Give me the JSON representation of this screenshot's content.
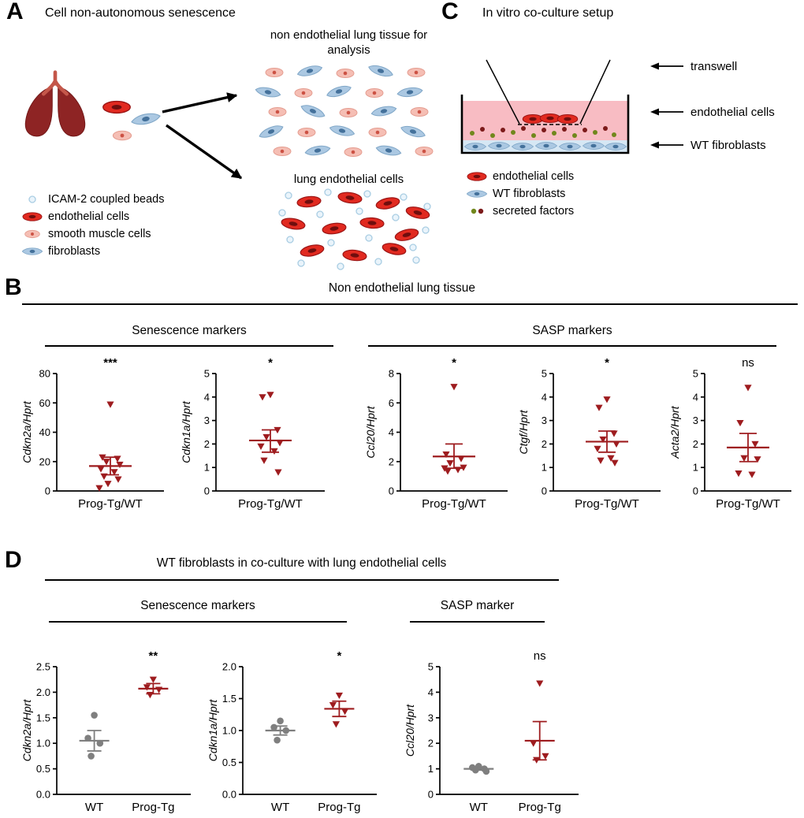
{
  "colors": {
    "dark_red": "#9E1C1F",
    "gray": "#7F7F7F"
  },
  "panelA": {
    "label": "A",
    "title": "Cell non-autonomous senescence",
    "tissue_caption": "non endothelial lung tissue for analysis",
    "endothelial_caption": "lung endothelial cells",
    "legend": [
      {
        "icon": "bead-icon",
        "label": "ICAM-2 coupled beads"
      },
      {
        "icon": "endothelial-cell-icon",
        "label": "endothelial cells"
      },
      {
        "icon": "smooth-muscle-cell-icon",
        "label": "smooth muscle cells"
      },
      {
        "icon": "fibroblast-icon",
        "label": "fibroblasts"
      }
    ]
  },
  "panelC": {
    "label": "C",
    "title": "In vitro co-culture setup",
    "callouts": [
      {
        "label": "transwell"
      },
      {
        "label": "endothelial cells"
      },
      {
        "label": "WT fibroblasts"
      }
    ],
    "legend": [
      {
        "icon": "endothelial-cell-icon",
        "label": "endothelial cells"
      },
      {
        "icon": "fibroblast-icon",
        "label": "WT fibroblasts"
      },
      {
        "icon": "secreted-factors-icon",
        "label": "secreted factors"
      }
    ]
  },
  "panelB": {
    "label": "B",
    "title": "Non endothelial lung tissue",
    "subsection_left": "Senescence markers",
    "subsection_right": "SASP markers"
  },
  "panelD": {
    "label": "D",
    "title": "WT fibroblasts in co-culture with lung endothelial cells",
    "subsection_left": "Senescence markers",
    "subsection_right": "SASP marker"
  },
  "chart_data": [
    {
      "id": "b-cdkn2a",
      "panel": "B",
      "type": "scatter",
      "ylabel": "Cdkn2a/Hprt",
      "ylim": [
        0,
        80
      ],
      "yticks": [
        "0",
        "20",
        "40",
        "60",
        "80"
      ],
      "significance": "***",
      "groups": [
        {
          "label": "Prog-Tg/WT",
          "marker": "triangle-down",
          "color": "#9E1C1F",
          "values": [
            59,
            23,
            22,
            20,
            18,
            15,
            13,
            10,
            8,
            5,
            2
          ],
          "mean": 17,
          "err_low": 11,
          "err_high": 23
        }
      ]
    },
    {
      "id": "b-cdkn1a",
      "panel": "B",
      "type": "scatter",
      "ylabel": "Cdkn1a/Hprt",
      "ylim": [
        0,
        5
      ],
      "yticks": [
        "0",
        "1",
        "2",
        "3",
        "4",
        "5"
      ],
      "significance": "*",
      "groups": [
        {
          "label": "Prog-Tg/WT",
          "marker": "triangle-down",
          "color": "#9E1C1F",
          "values": [
            4.1,
            4.0,
            2.6,
            2.3,
            2.05,
            1.9,
            1.7,
            1.3,
            0.8
          ],
          "mean": 2.15,
          "err_low": 1.65,
          "err_high": 2.6
        }
      ]
    },
    {
      "id": "b-ccl20",
      "panel": "B",
      "type": "scatter",
      "ylabel": "Ccl20/Hprt",
      "ylim": [
        0,
        8
      ],
      "yticks": [
        "0",
        "2",
        "4",
        "6",
        "8"
      ],
      "significance": "*",
      "groups": [
        {
          "label": "Prog-Tg/WT",
          "marker": "triangle-down",
          "color": "#9E1C1F",
          "values": [
            7.1,
            2.5,
            2.2,
            1.9,
            1.6,
            1.55,
            1.45,
            1.35
          ],
          "mean": 2.35,
          "err_low": 1.55,
          "err_high": 3.2
        }
      ]
    },
    {
      "id": "b-ctgf",
      "panel": "B",
      "type": "scatter",
      "ylabel": "Ctgf/Hprt",
      "ylim": [
        0,
        5
      ],
      "yticks": [
        "0",
        "1",
        "2",
        "3",
        "4",
        "5"
      ],
      "significance": "*",
      "groups": [
        {
          "label": "Prog-Tg/WT",
          "marker": "triangle-down",
          "color": "#9E1C1F",
          "values": [
            3.9,
            3.55,
            2.45,
            2.2,
            2.0,
            1.8,
            1.4,
            1.3,
            1.2
          ],
          "mean": 2.1,
          "err_low": 1.65,
          "err_high": 2.55
        }
      ]
    },
    {
      "id": "b-acta2",
      "panel": "B",
      "type": "scatter",
      "ylabel": "Acta2/Hprt",
      "ylim": [
        0,
        5
      ],
      "yticks": [
        "0",
        "1",
        "2",
        "3",
        "4",
        "5"
      ],
      "significance": "ns",
      "groups": [
        {
          "label": "Prog-Tg/WT",
          "marker": "triangle-down",
          "color": "#9E1C1F",
          "values": [
            4.4,
            2.9,
            2.0,
            1.4,
            1.35,
            0.75,
            0.7
          ],
          "mean": 1.85,
          "err_low": 1.25,
          "err_high": 2.45
        }
      ]
    },
    {
      "id": "d-cdkn2a",
      "panel": "D",
      "type": "scatter",
      "ylabel": "Cdkn2a/Hprt",
      "ylim": [
        0,
        2.5
      ],
      "yticks": [
        "0.0",
        "0.5",
        "1.0",
        "1.5",
        "2.0",
        "2.5"
      ],
      "significance": "**",
      "sig_group": 1,
      "groups": [
        {
          "label": "WT",
          "marker": "circle",
          "color": "#7F7F7F",
          "values": [
            1.55,
            1.1,
            1.0,
            0.75
          ],
          "mean": 1.05,
          "err_low": 0.85,
          "err_high": 1.25
        },
        {
          "label": "Prog-Tg",
          "marker": "triangle-down",
          "color": "#9E1C1F",
          "values": [
            2.25,
            2.1,
            2.05,
            1.95
          ],
          "mean": 2.07,
          "err_low": 1.97,
          "err_high": 2.17
        }
      ]
    },
    {
      "id": "d-cdkn1a",
      "panel": "D",
      "type": "scatter",
      "ylabel": "Cdkn1a/Hprt",
      "ylim": [
        0,
        2.0
      ],
      "yticks": [
        "0.0",
        "0.5",
        "1.0",
        "1.5",
        "2.0"
      ],
      "significance": "*",
      "sig_group": 1,
      "groups": [
        {
          "label": "WT",
          "marker": "circle",
          "color": "#7F7F7F",
          "values": [
            1.15,
            1.05,
            1.0,
            0.85
          ],
          "mean": 1.0,
          "err_low": 0.93,
          "err_high": 1.07
        },
        {
          "label": "Prog-Tg",
          "marker": "triangle-down",
          "color": "#9E1C1F",
          "values": [
            1.55,
            1.4,
            1.3,
            1.1
          ],
          "mean": 1.34,
          "err_low": 1.22,
          "err_high": 1.46
        }
      ]
    },
    {
      "id": "d-ccl20",
      "panel": "D",
      "type": "scatter",
      "ylabel": "Ccl20/Hprt",
      "ylim": [
        0,
        5
      ],
      "yticks": [
        "0",
        "1",
        "2",
        "3",
        "4",
        "5"
      ],
      "significance": "ns",
      "sig_group": 1,
      "groups": [
        {
          "label": "WT",
          "marker": "circle",
          "color": "#7F7F7F",
          "values": [
            1.1,
            1.05,
            1.0,
            0.95,
            0.9
          ],
          "mean": 1.0,
          "err_low": 0.95,
          "err_high": 1.05
        },
        {
          "label": "Prog-Tg",
          "marker": "triangle-down",
          "color": "#9E1C1F",
          "values": [
            4.35,
            2.0,
            1.5,
            1.35
          ],
          "mean": 2.1,
          "err_low": 1.35,
          "err_high": 2.85
        }
      ]
    }
  ]
}
